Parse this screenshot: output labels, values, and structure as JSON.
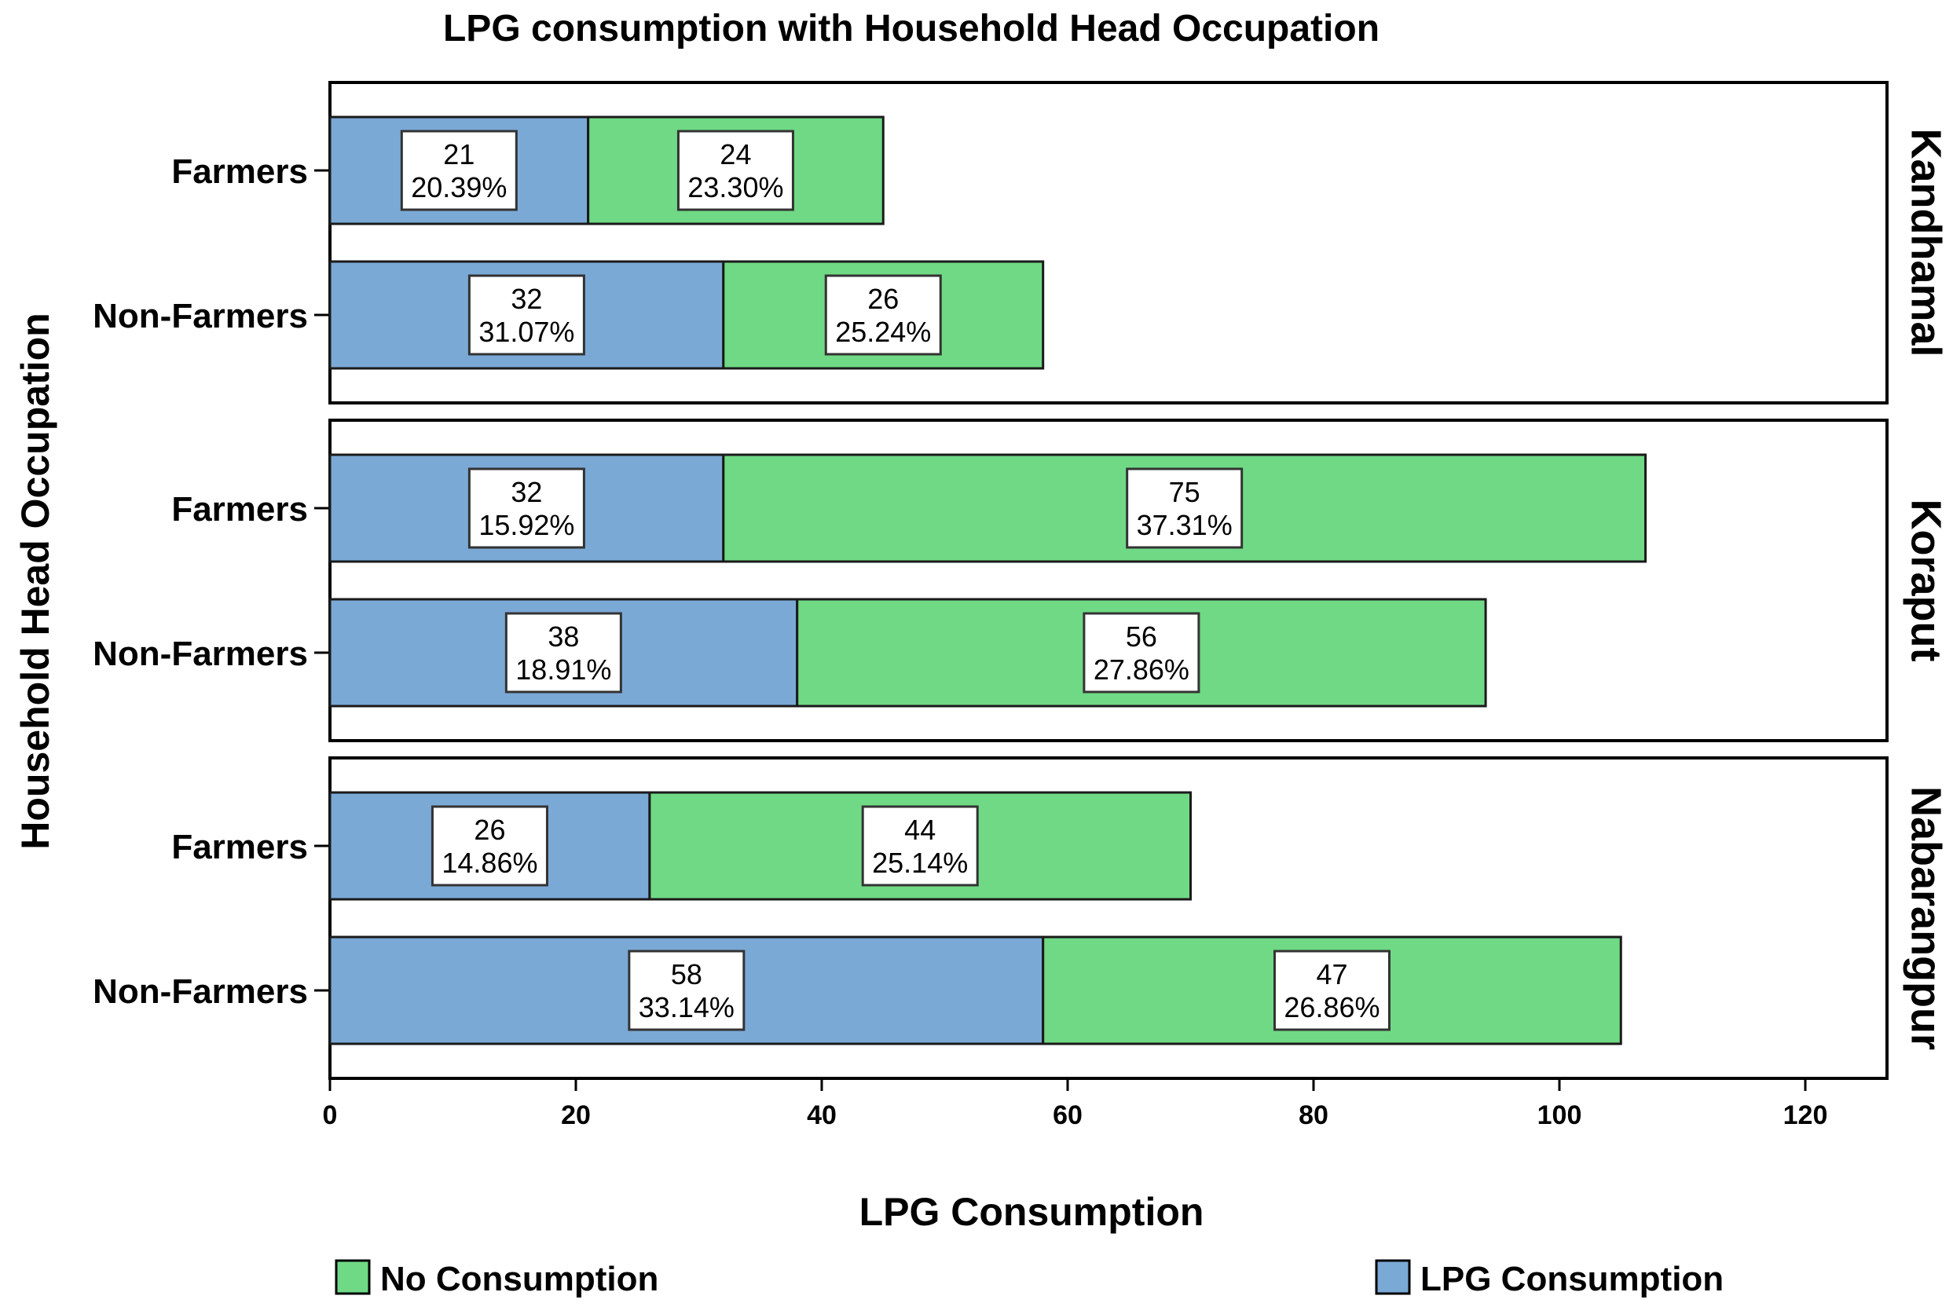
{
  "chart_data": {
    "type": "bar",
    "orientation": "horizontal",
    "stacked": true,
    "title": "LPG consumption with Household Head Occupation",
    "xlabel": "LPG Consumption",
    "ylabel": "Household Head Occupation",
    "xlim": [
      0,
      126
    ],
    "xticks": [
      0,
      20,
      40,
      60,
      80,
      100,
      120
    ],
    "grid": false,
    "legend_position": "bottom",
    "legend": [
      {
        "label": "No Consumption",
        "color": "#70D985"
      },
      {
        "label": "LPG Consumption",
        "color": "#7BA9D6"
      }
    ],
    "series_colors": {
      "LPG Consumption": "#7BA9D6",
      "No Consumption": "#70D985"
    },
    "panels": [
      {
        "name": "Kandhamal",
        "bars": [
          {
            "category": "Farmers",
            "segments": [
              {
                "series": "LPG Consumption",
                "value": 21,
                "label_count": "21",
                "label_pct": "20.39%"
              },
              {
                "series": "No Consumption",
                "value": 24,
                "label_count": "24",
                "label_pct": "23.30%"
              }
            ]
          },
          {
            "category": "Non-Farmers",
            "segments": [
              {
                "series": "LPG Consumption",
                "value": 32,
                "label_count": "32",
                "label_pct": "31.07%"
              },
              {
                "series": "No Consumption",
                "value": 26,
                "label_count": "26",
                "label_pct": "25.24%"
              }
            ]
          }
        ]
      },
      {
        "name": "Koraput",
        "bars": [
          {
            "category": "Farmers",
            "segments": [
              {
                "series": "LPG Consumption",
                "value": 32,
                "label_count": "32",
                "label_pct": "15.92%"
              },
              {
                "series": "No Consumption",
                "value": 75,
                "label_count": "75",
                "label_pct": "37.31%"
              }
            ]
          },
          {
            "category": "Non-Farmers",
            "segments": [
              {
                "series": "LPG Consumption",
                "value": 38,
                "label_count": "38",
                "label_pct": "18.91%"
              },
              {
                "series": "No Consumption",
                "value": 56,
                "label_count": "56",
                "label_pct": "27.86%"
              }
            ]
          }
        ]
      },
      {
        "name": "Nabarangpur",
        "bars": [
          {
            "category": "Farmers",
            "segments": [
              {
                "series": "LPG Consumption",
                "value": 26,
                "label_count": "26",
                "label_pct": "14.86%"
              },
              {
                "series": "No Consumption",
                "value": 44,
                "label_count": "44",
                "label_pct": "25.14%"
              }
            ]
          },
          {
            "category": "Non-Farmers",
            "segments": [
              {
                "series": "LPG Consumption",
                "value": 58,
                "label_count": "58",
                "label_pct": "33.14%"
              },
              {
                "series": "No Consumption",
                "value": 47,
                "label_count": "47",
                "label_pct": "26.86%"
              }
            ]
          }
        ]
      }
    ]
  }
}
